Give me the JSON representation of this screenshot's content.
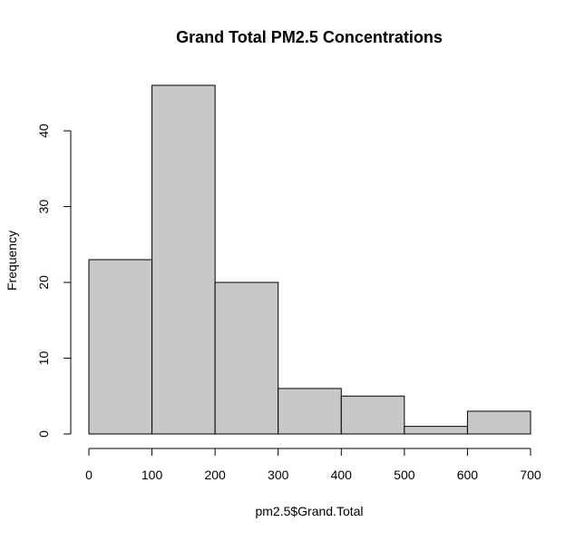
{
  "chart_data": {
    "type": "bar",
    "title": "Grand Total PM2.5 Concentrations",
    "xlabel": "pm2.5$Grand.Total",
    "ylabel": "Frequency",
    "bins": [
      {
        "x0": 0,
        "x1": 100,
        "count": 23
      },
      {
        "x0": 100,
        "x1": 200,
        "count": 46
      },
      {
        "x0": 200,
        "x1": 300,
        "count": 20
      },
      {
        "x0": 300,
        "x1": 400,
        "count": 6
      },
      {
        "x0": 400,
        "x1": 500,
        "count": 5
      },
      {
        "x0": 500,
        "x1": 600,
        "count": 1
      },
      {
        "x0": 600,
        "x1": 700,
        "count": 3
      }
    ],
    "xlim": [
      0,
      700
    ],
    "ylim": [
      0,
      46
    ],
    "x_ticks": [
      "0",
      "100",
      "200",
      "300",
      "400",
      "500",
      "600",
      "700"
    ],
    "y_ticks": [
      "0",
      "10",
      "20",
      "30",
      "40"
    ],
    "grid": false,
    "colors": {
      "bar_fill": "#c8c8c8",
      "bar_stroke": "#000000"
    }
  }
}
